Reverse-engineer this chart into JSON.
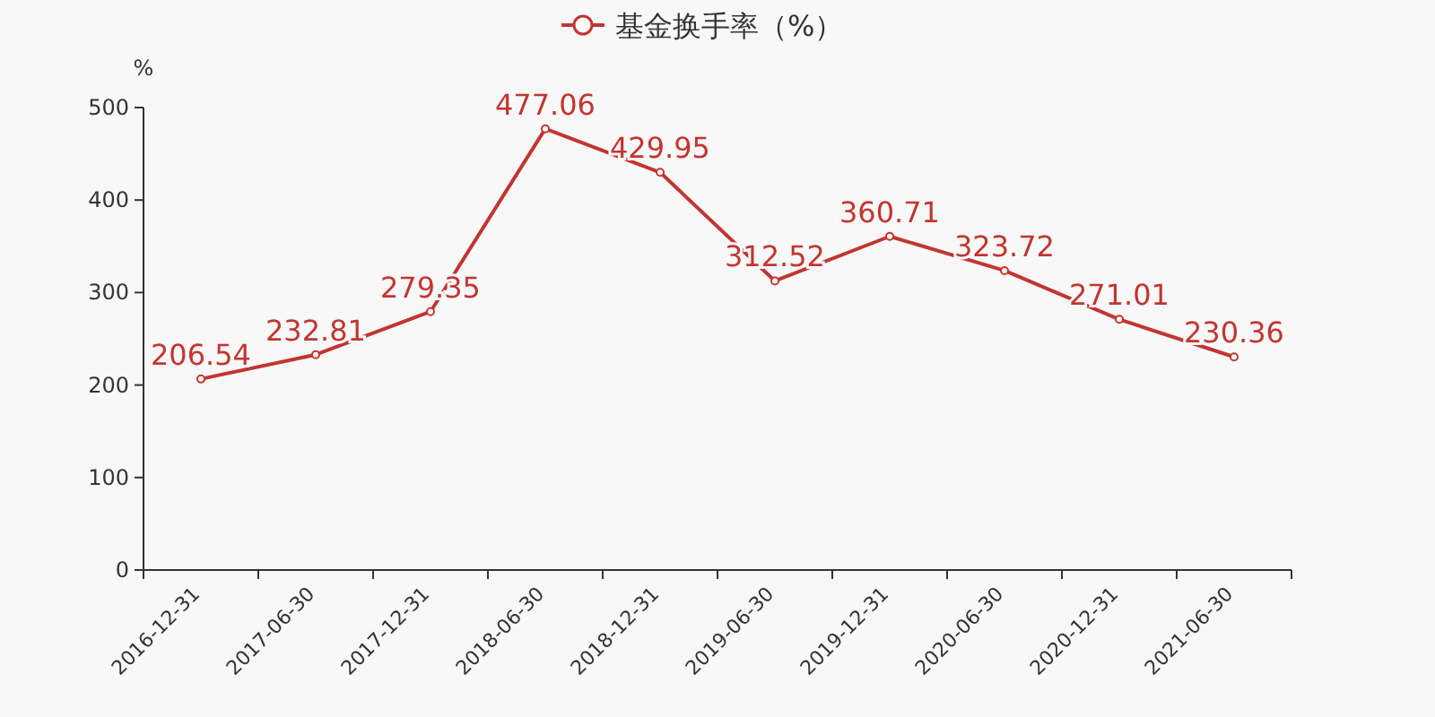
{
  "chart_data": {
    "type": "line",
    "ylabel": "%",
    "categories": [
      "2016-12-31",
      "2017-06-30",
      "2017-12-31",
      "2018-06-30",
      "2018-12-31",
      "2019-06-30",
      "2019-12-31",
      "2020-06-30",
      "2020-12-31",
      "2021-06-30"
    ],
    "series": [
      {
        "name": "基金换手率（%）",
        "color": "#c23531",
        "values": [
          206.54,
          232.81,
          279.35,
          477.06,
          429.95,
          312.52,
          360.71,
          323.72,
          271.01,
          230.36
        ]
      }
    ],
    "ylim": [
      0,
      500
    ],
    "yticks": [
      0,
      100,
      200,
      300,
      400,
      500
    ],
    "data_labels": true,
    "legend": "top",
    "marker": "circle",
    "line_style": "solid"
  }
}
